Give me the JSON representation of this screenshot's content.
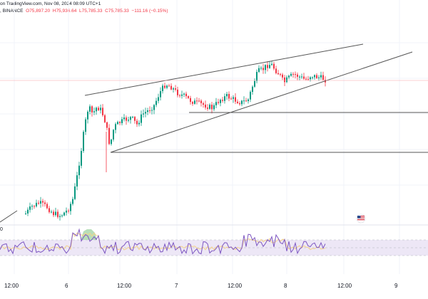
{
  "header": {
    "source_text": "on TradingView.com, Nov 08, 2024 08:09 UTC+1",
    "exchange_text": ", BINANCE",
    "ohlc_o": "O75,897.20",
    "ohlc_h": "H75,936.64",
    "ohlc_l": "L75,785.33",
    "ohlc_c": "C75,785.33",
    "ohlc_change": "−111.16 (−0.15%)"
  },
  "x_axis": {
    "labels": [
      "12:00",
      "6",
      "12:00",
      "7",
      "12:00",
      "8",
      "12:00",
      "9"
    ]
  },
  "rsi_panel": {
    "left_label": "0"
  },
  "colors": {
    "up": "#089981",
    "down": "#f23645",
    "rsi_line": "#7e57c2",
    "rsi_ma": "#f5d28a",
    "rsi_band": "#ede7f6",
    "trendline": "#131722",
    "price_line": "#f7a1a8",
    "flag_icon": "us-flag-icon"
  }
}
